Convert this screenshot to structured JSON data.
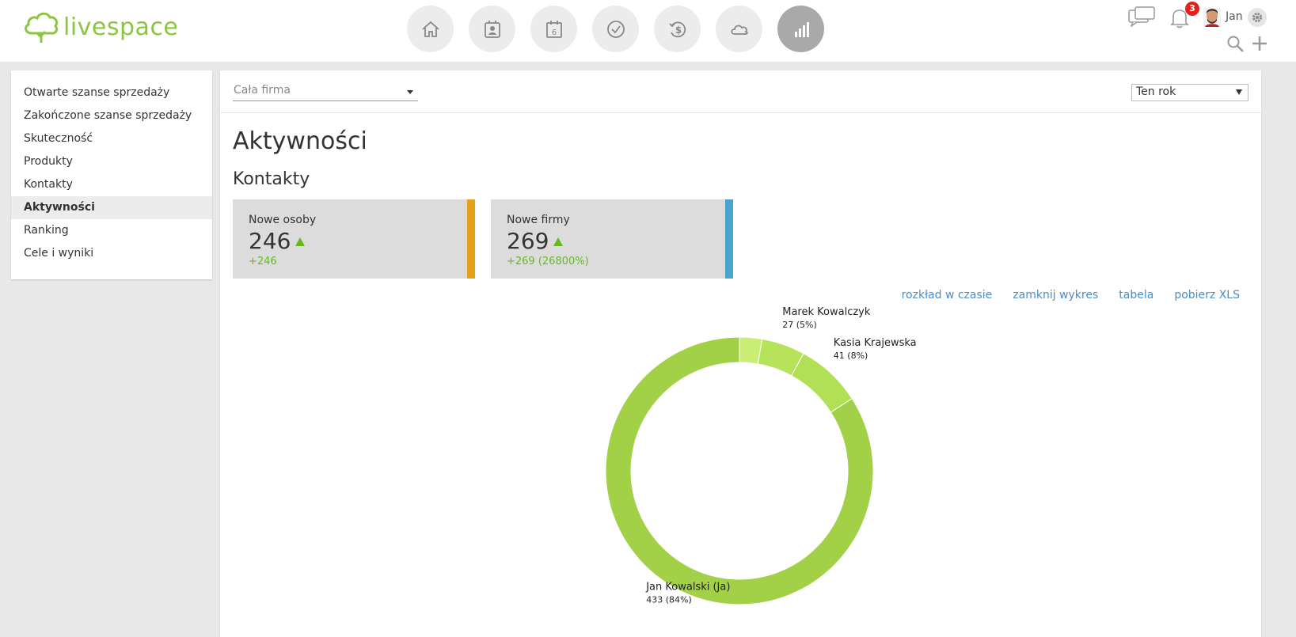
{
  "brand": {
    "name": "livespace",
    "accent": "#8cc63f"
  },
  "nav": [
    {
      "icon": "home-icon"
    },
    {
      "icon": "contacts-icon"
    },
    {
      "icon": "calendar-icon",
      "label": "6"
    },
    {
      "icon": "tasks-check-icon"
    },
    {
      "icon": "deals-money-icon"
    },
    {
      "icon": "cloud-icon"
    },
    {
      "icon": "reports-bar-chart-icon",
      "active": true
    }
  ],
  "user": {
    "name": "Jan",
    "notifications": "3"
  },
  "sidebar": {
    "items": [
      {
        "label": "Otwarte szanse sprzedaży"
      },
      {
        "label": "Zakończone szanse sprzedaży"
      },
      {
        "label": "Skuteczność"
      },
      {
        "label": "Produkty"
      },
      {
        "label": "Kontakty"
      },
      {
        "label": "Aktywności",
        "active": true
      },
      {
        "label": "Ranking"
      },
      {
        "label": "Cele i wyniki"
      }
    ]
  },
  "filters": {
    "company": "Cała firma",
    "period": "Ten rok"
  },
  "page": {
    "title": "Aktywności",
    "section": "Kontakty"
  },
  "stats": [
    {
      "label": "Nowe osoby",
      "value": "246",
      "delta": "+246",
      "color": "#e3a21a"
    },
    {
      "label": "Nowe firmy",
      "value": "269",
      "delta": "+269 (26800%)",
      "color": "#4aa3cf"
    }
  ],
  "links": [
    "rozkład w czasie",
    "zamknij wykres",
    "tabela",
    "pobierz XLS"
  ],
  "chart_data": {
    "type": "pie",
    "donut": true,
    "slices": [
      {
        "name": "Jan Kowalski (Ja)",
        "value": 433,
        "percent": "84%",
        "label_value": "433 (84%)",
        "color": "#a2d147"
      },
      {
        "name": "",
        "value": 14,
        "color": "#c9ee73"
      },
      {
        "name": "Marek Kowalczyk",
        "value": 27,
        "percent": "5%",
        "label_value": "27 (5%)",
        "color": "#b6e35a"
      },
      {
        "name": "Kasia Krajewska",
        "value": 41,
        "percent": "8%",
        "label_value": "41 (8%)",
        "color": "#b1e057"
      }
    ]
  }
}
